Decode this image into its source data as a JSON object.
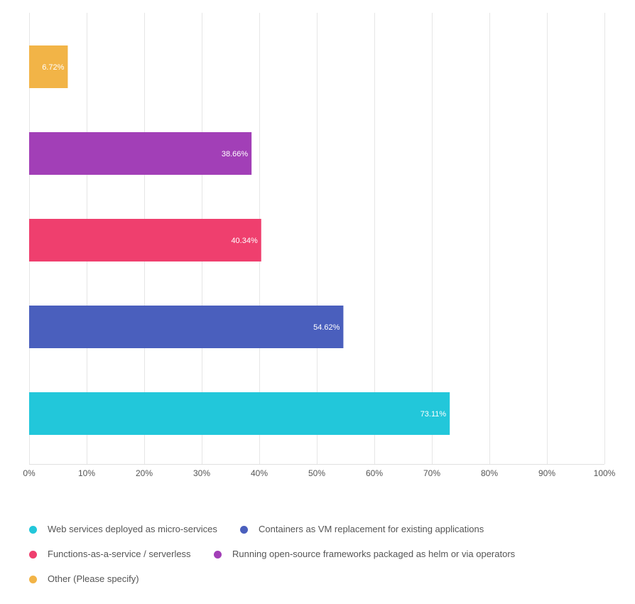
{
  "chart_data": {
    "type": "bar",
    "orientation": "horizontal",
    "categories": [
      "Other (Please specify)",
      "Running open-source frameworks packaged as helm or via operators",
      "Functions-as-a-service / serverless",
      "Containers as VM replacement for existing applications",
      "Web services deployed as micro-services"
    ],
    "values": [
      6.72,
      38.66,
      40.34,
      54.62,
      73.11
    ],
    "data_labels": [
      "6.72%",
      "38.66%",
      "40.34%",
      "54.62%",
      "73.11%"
    ],
    "colors": [
      "#f2b447",
      "#a23fb7",
      "#ef3f6e",
      "#4a5fbd",
      "#22c7da"
    ],
    "xlim": [
      0,
      100
    ],
    "x_ticks": [
      0,
      10,
      20,
      30,
      40,
      50,
      60,
      70,
      80,
      90,
      100
    ],
    "x_tick_labels": [
      "0%",
      "10%",
      "20%",
      "30%",
      "40%",
      "50%",
      "60%",
      "70%",
      "80%",
      "90%",
      "100%"
    ],
    "grid": true,
    "legend_position": "bottom",
    "title": "",
    "xlabel": "",
    "ylabel": ""
  },
  "legend": {
    "items": [
      {
        "label": "Web services deployed as micro-services",
        "color": "#22c7da"
      },
      {
        "label": "Containers as VM replacement for existing applications",
        "color": "#4a5fbd"
      },
      {
        "label": "Functions-as-a-service / serverless",
        "color": "#ef3f6e"
      },
      {
        "label": "Running open-source frameworks packaged as helm or via operators",
        "color": "#a23fb7"
      },
      {
        "label": "Other (Please specify)",
        "color": "#f2b447"
      }
    ]
  }
}
